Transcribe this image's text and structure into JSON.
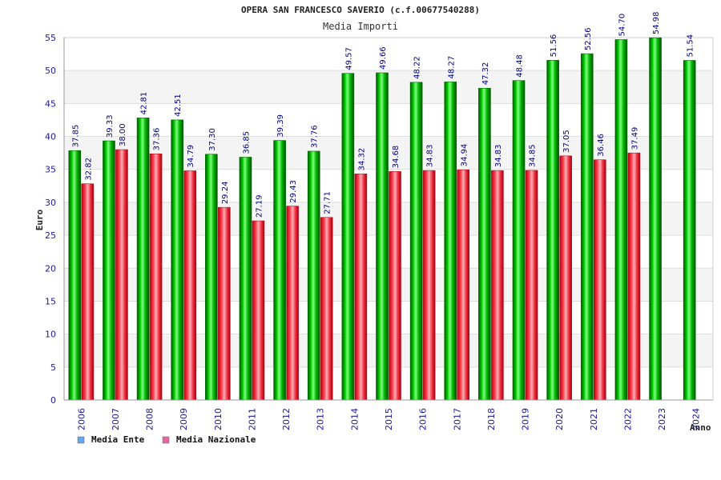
{
  "chart_data": {
    "type": "bar",
    "title": "OPERA SAN FRANCESCO SAVERIO (c.f.00677540288)",
    "subtitle": "Media Importi",
    "xlabel": "Anno",
    "ylabel": "Euro",
    "ylim": [
      0,
      55
    ],
    "yticks": [
      0,
      5,
      10,
      15,
      20,
      25,
      30,
      35,
      40,
      45,
      50,
      55
    ],
    "grid": true,
    "legend_position": "bottom-left",
    "categories": [
      "2006",
      "2007",
      "2008",
      "2009",
      "2010",
      "2011",
      "2012",
      "2013",
      "2014",
      "2015",
      "2016",
      "2017",
      "2018",
      "2019",
      "2020",
      "2021",
      "2022",
      "2023",
      "2024"
    ],
    "series": [
      {
        "name": "Media Ente",
        "color": "#00b000",
        "legend_color": "#66a6e8",
        "values": [
          37.85,
          39.33,
          42.81,
          42.51,
          37.3,
          36.85,
          39.39,
          37.76,
          49.57,
          49.66,
          48.22,
          48.27,
          47.32,
          48.48,
          51.56,
          52.56,
          54.7,
          54.98,
          51.54
        ],
        "labels": [
          "37.85",
          "39.33",
          "42.81",
          "42.51",
          "37.30",
          "36.85",
          "39.39",
          "37.76",
          "49.57",
          "49.66",
          "48.22",
          "48.27",
          "47.32",
          "48.48",
          "51.56",
          "52.56",
          "54.70",
          "54.98",
          "51.54"
        ]
      },
      {
        "name": "Media Nazionale",
        "color": "#e8303a",
        "legend_color": "#e06aa0",
        "values": [
          32.82,
          38.0,
          37.36,
          34.79,
          29.24,
          27.19,
          29.43,
          27.71,
          34.32,
          34.68,
          34.83,
          34.94,
          34.83,
          34.85,
          37.05,
          36.46,
          37.49,
          null,
          null
        ],
        "labels": [
          "32.82",
          "38.00",
          "37.36",
          "34.79",
          "29.24",
          "27.19",
          "29.43",
          "27.71",
          "34.32",
          "34.68",
          "34.83",
          "34.94",
          "34.83",
          "34.85",
          "37.05",
          "36.46",
          "37.49",
          null,
          null
        ]
      }
    ]
  }
}
